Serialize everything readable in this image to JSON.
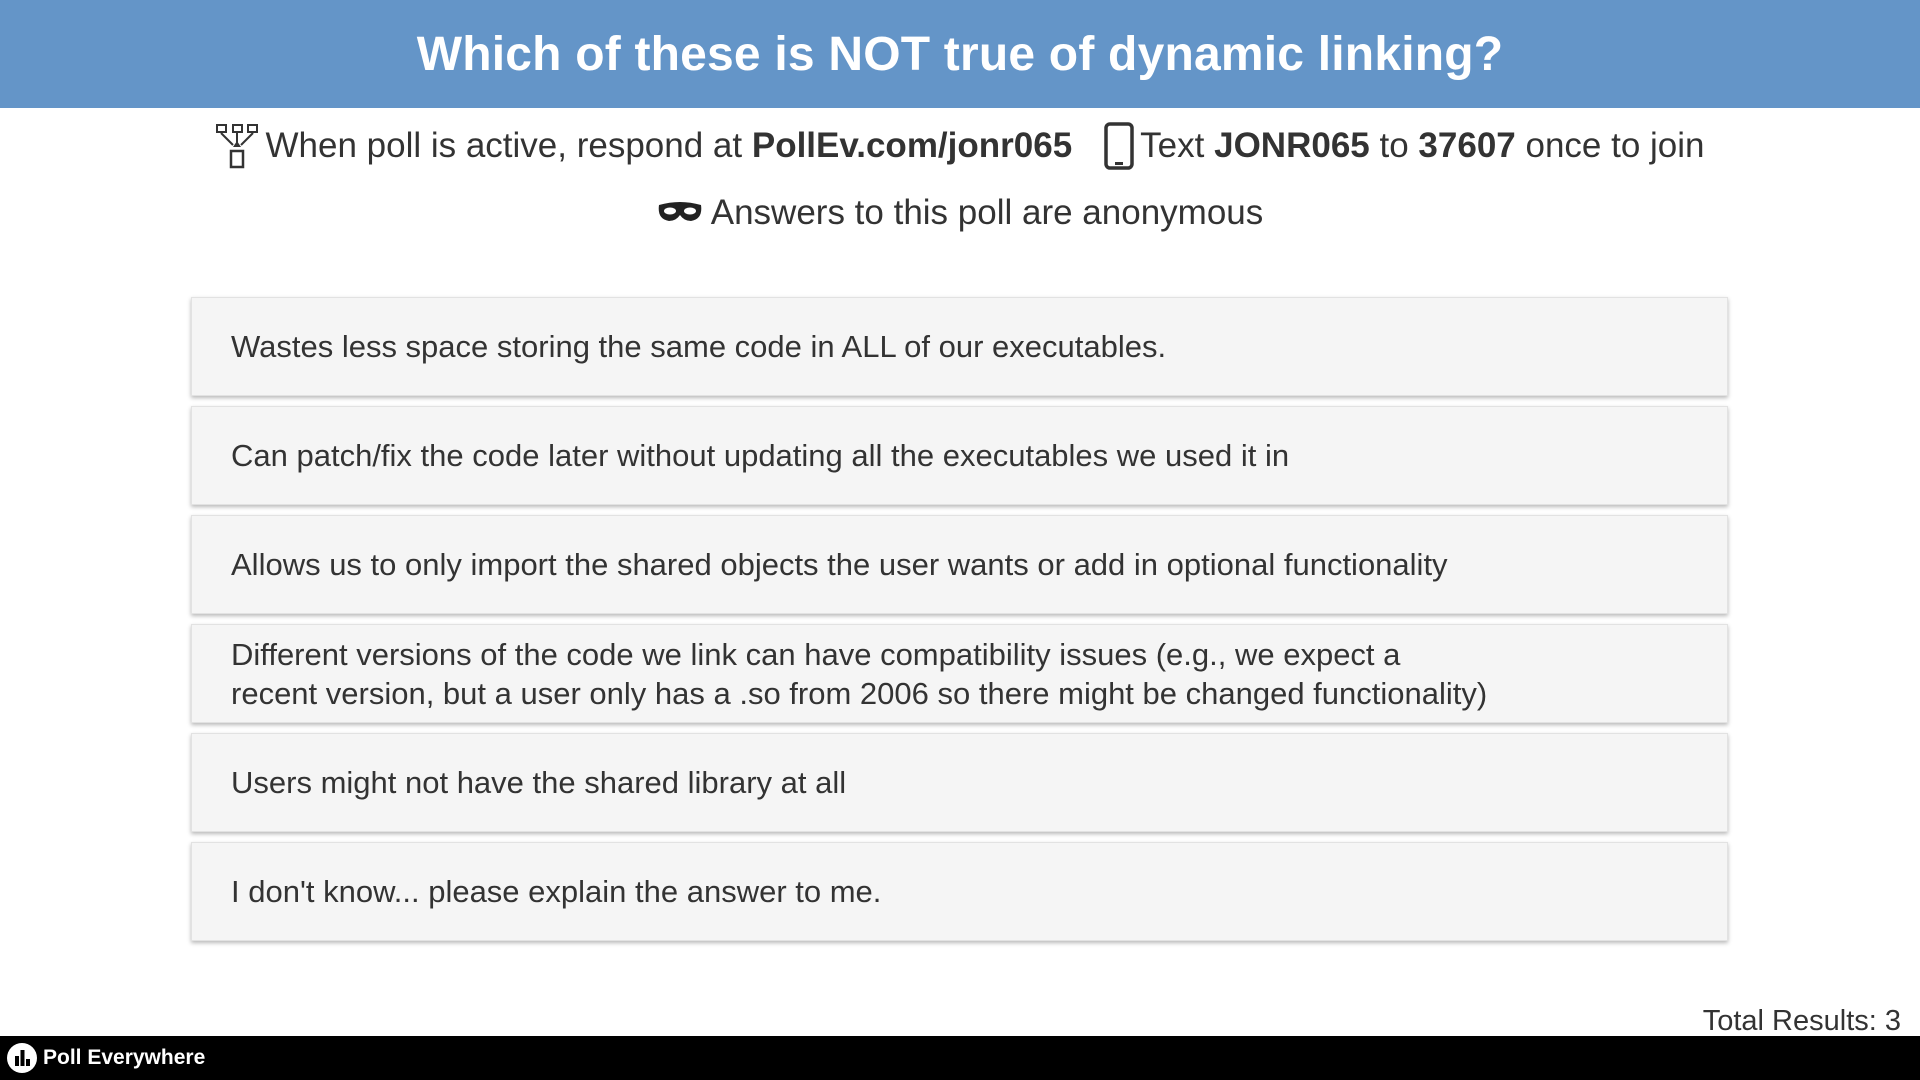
{
  "header": {
    "title": "Which of these is NOT true of dynamic linking?"
  },
  "instructions": {
    "web_prefix": "When poll is active, respond at",
    "web_url": "PollEv.com/jonr065",
    "text_prefix": "Text",
    "text_code": "JONR065",
    "text_to": "to",
    "text_number": "37607",
    "text_suffix": "once to join",
    "web_icon": "network-tree-icon",
    "phone_icon": "mobile-phone-icon"
  },
  "anonymity": {
    "icon": "mask-icon",
    "text": "Answers to this poll are anonymous"
  },
  "options": [
    {
      "text": "Wastes less space storing the same code in ALL of our executables."
    },
    {
      "text": "Can patch/fix the code later without updating all the executables we used it in"
    },
    {
      "text": "Allows us to only import the shared objects the user wants or add in optional functionality"
    },
    {
      "text": "Different versions of the code we link can have compatibility issues (e.g., we expect a\nrecent version, but a user only has a .so from 2006 so there might be changed functionality)"
    },
    {
      "text": "Users might not have the shared library at all"
    },
    {
      "text": "I don't know... please explain the answer to me."
    }
  ],
  "results": {
    "total_label": "Total Results: 3"
  },
  "footer": {
    "brand": "Poll Everywhere",
    "brand_icon": "poll-everywhere-logo-icon"
  },
  "colors": {
    "header_bg": "#6495c8",
    "option_bg": "#f5f5f5",
    "footer_bg": "#000000",
    "text": "#333333"
  }
}
